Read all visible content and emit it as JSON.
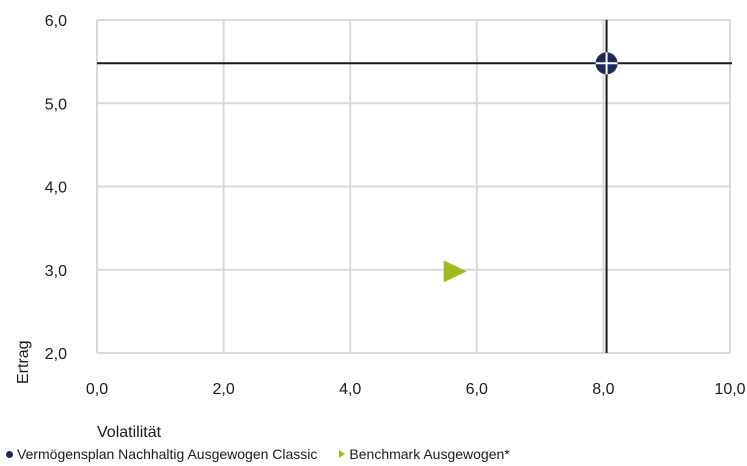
{
  "chart_data": {
    "type": "scatter",
    "xlabel": "Volatilität",
    "ylabel": "Ertrag",
    "xlim": [
      0,
      10
    ],
    "ylim": [
      2,
      6
    ],
    "x_ticks": [
      "0,0",
      "2,0",
      "4,0",
      "6,0",
      "8,0",
      "10,0"
    ],
    "y_ticks": [
      "2,0",
      "3,0",
      "4,0",
      "5,0",
      "6,0"
    ],
    "grid": true,
    "legend_position": "bottom-left",
    "series": [
      {
        "name": "Vermögensplan Nachhaltig Ausgewogen Classic",
        "marker": "circle-crosshair",
        "color": "#1f2a5a",
        "x": [
          8.05
        ],
        "y": [
          5.48
        ]
      },
      {
        "name": "Benchmark Ausgewogen*",
        "marker": "triangle-right",
        "color": "#9bbb1e",
        "x": [
          5.65
        ],
        "y": [
          2.98
        ]
      }
    ]
  },
  "colors": {
    "grid": "#d9d9d9",
    "crosshair": "#1a1a1a"
  }
}
